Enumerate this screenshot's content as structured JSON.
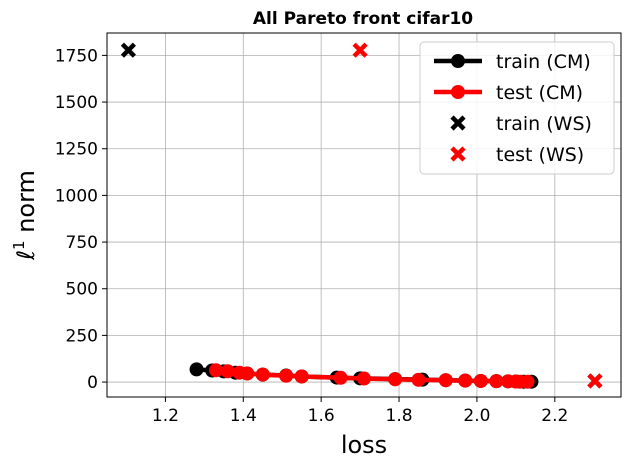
{
  "chart_data": {
    "type": "line",
    "title": "All Pareto front cifar10",
    "xlabel": "loss",
    "ylabel_prefix": "ℓ",
    "ylabel_sup": "1",
    "ylabel_suffix": " norm",
    "xlim": [
      1.05,
      2.37
    ],
    "ylim": [
      -80,
      1870
    ],
    "xticks": [
      1.2,
      1.4,
      1.6,
      1.8,
      2.0,
      2.2
    ],
    "xtick_labels": [
      "1.2",
      "1.4",
      "1.6",
      "1.8",
      "2.0",
      "2.2"
    ],
    "yticks": [
      0,
      250,
      500,
      750,
      1000,
      1250,
      1500,
      1750
    ],
    "ytick_labels": [
      "0",
      "250",
      "500",
      "750",
      "1000",
      "1250",
      "1500",
      "1750"
    ],
    "grid": true,
    "legend_position": "top-right",
    "series": [
      {
        "name": "train (CM)",
        "kind": "line",
        "marker": "circle",
        "color": "#000000",
        "x": [
          1.28,
          1.32,
          1.35,
          1.38,
          1.41,
          1.45,
          1.51,
          1.55,
          1.64,
          1.7,
          1.79,
          1.86,
          1.92,
          1.97,
          2.01,
          2.05,
          2.08,
          2.1,
          2.12,
          2.14
        ],
        "y": [
          68,
          62,
          57,
          50,
          46,
          40,
          35,
          30,
          24,
          20,
          16,
          13,
          10,
          8,
          6,
          5,
          4,
          3,
          2,
          2
        ]
      },
      {
        "name": "test (CM)",
        "kind": "line",
        "marker": "circle",
        "color": "#ff0000",
        "x": [
          1.33,
          1.36,
          1.39,
          1.41,
          1.45,
          1.51,
          1.55,
          1.65,
          1.71,
          1.79,
          1.85,
          1.92,
          1.97,
          2.01,
          2.05,
          2.08,
          2.1,
          2.11,
          2.13
        ],
        "y": [
          63,
          58,
          50,
          46,
          40,
          34,
          30,
          23,
          19,
          15,
          12,
          10,
          8,
          6,
          5,
          4,
          3,
          2,
          2
        ]
      },
      {
        "name": "train (WS)",
        "kind": "scatter",
        "marker": "x",
        "color": "#000000",
        "x": [
          1.105,
          2.303
        ],
        "y": [
          1778,
          6
        ]
      },
      {
        "name": "test (WS)",
        "kind": "scatter",
        "marker": "x",
        "color": "#ff0000",
        "x": [
          1.7,
          2.303
        ],
        "y": [
          1778,
          6
        ]
      }
    ]
  }
}
